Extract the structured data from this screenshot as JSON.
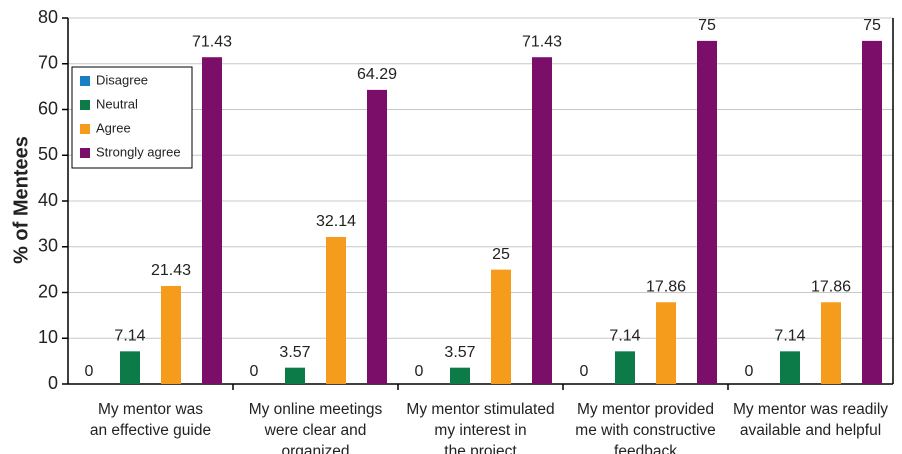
{
  "chart_data": {
    "type": "bar",
    "ylabel": "% of Mentees",
    "categories": [
      "My mentor was\nan effective guide",
      "My online meetings\nwere clear and\norganized",
      "My mentor stimulated\nmy interest in\nthe project",
      "My mentor provided\nme with constructive\nfeedback",
      "My mentor was readily\navailable and helpful"
    ],
    "series": [
      {
        "name": "Disagree",
        "color": "#1a7fc4",
        "values": [
          0,
          0,
          0,
          0,
          0
        ]
      },
      {
        "name": "Neutral",
        "color": "#0c7b47",
        "values": [
          7.14,
          3.57,
          3.57,
          7.14,
          7.14
        ]
      },
      {
        "name": "Agree",
        "color": "#f69c1d",
        "values": [
          21.43,
          32.14,
          25,
          17.86,
          17.86
        ]
      },
      {
        "name": "Strongly agree",
        "color": "#7a0e68",
        "values": [
          71.43,
          64.29,
          71.43,
          75,
          75
        ]
      }
    ],
    "ylim": [
      0,
      80
    ],
    "yticks": [
      0,
      10,
      20,
      30,
      40,
      50,
      60,
      70,
      80
    ],
    "grid": true,
    "legend": "upper left"
  }
}
